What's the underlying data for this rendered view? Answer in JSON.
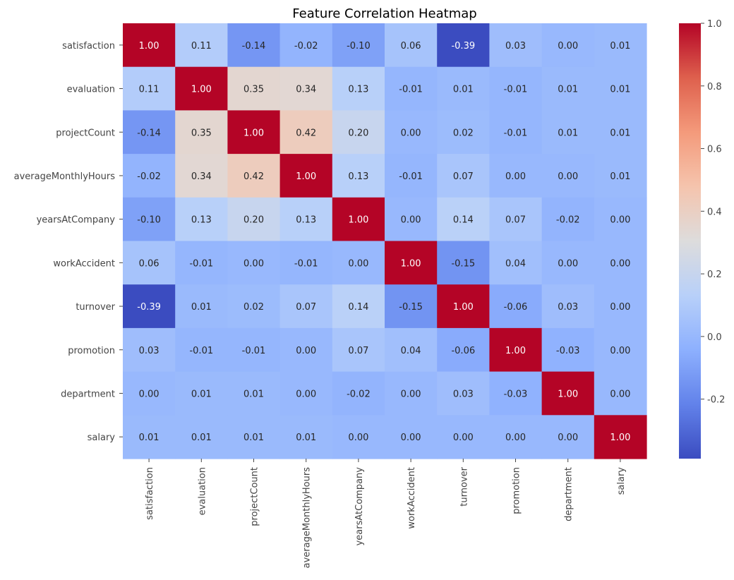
{
  "chart_data": {
    "type": "heatmap",
    "title": "Feature Correlation Heatmap",
    "labels": [
      "satisfaction",
      "evaluation",
      "projectCount",
      "averageMonthlyHours",
      "yearsAtCompany",
      "workAccident",
      "turnover",
      "promotion",
      "department",
      "salary"
    ],
    "values": [
      [
        1.0,
        0.11,
        -0.14,
        -0.02,
        -0.1,
        0.06,
        -0.39,
        0.03,
        0.0,
        0.01
      ],
      [
        0.11,
        1.0,
        0.35,
        0.34,
        0.13,
        -0.01,
        0.01,
        -0.01,
        0.01,
        0.01
      ],
      [
        -0.14,
        0.35,
        1.0,
        0.42,
        0.2,
        -0.0,
        0.02,
        -0.01,
        0.01,
        0.01
      ],
      [
        -0.02,
        0.34,
        0.42,
        1.0,
        0.13,
        -0.01,
        0.07,
        -0.0,
        0.0,
        0.01
      ],
      [
        -0.1,
        0.13,
        0.2,
        0.13,
        1.0,
        0.0,
        0.14,
        0.07,
        -0.02,
        -0.0
      ],
      [
        0.06,
        -0.01,
        -0.0,
        -0.01,
        0.0,
        1.0,
        -0.15,
        0.04,
        0.0,
        -0.0
      ],
      [
        -0.39,
        0.01,
        0.02,
        0.07,
        0.14,
        -0.15,
        1.0,
        -0.06,
        0.03,
        -0.0
      ],
      [
        0.03,
        -0.01,
        -0.01,
        -0.0,
        0.07,
        0.04,
        -0.06,
        1.0,
        -0.03,
        -0.0
      ],
      [
        0.0,
        0.01,
        0.01,
        0.0,
        -0.02,
        0.0,
        0.03,
        -0.03,
        1.0,
        0.0
      ],
      [
        0.01,
        0.01,
        0.01,
        0.01,
        -0.0,
        -0.0,
        -0.0,
        -0.0,
        0.0,
        1.0
      ]
    ],
    "colormap": "coolwarm",
    "vmin": -0.39,
    "vmax": 1.0,
    "colorbar_ticks": [
      -0.2,
      0.0,
      0.2,
      0.4,
      0.6,
      0.8,
      1.0
    ],
    "colorbar_tick_labels": [
      "-0.2",
      "0.0",
      "0.2",
      "0.4",
      "0.6",
      "0.8",
      "1.0"
    ],
    "xlabel": "",
    "ylabel": ""
  }
}
